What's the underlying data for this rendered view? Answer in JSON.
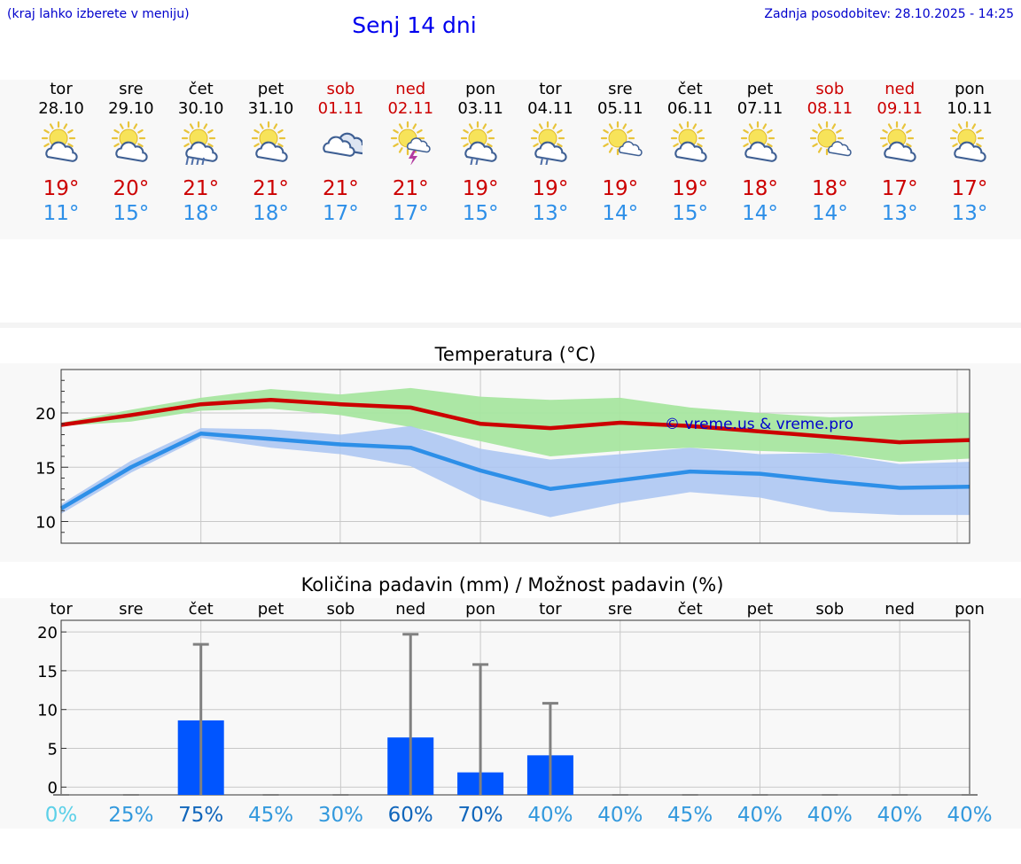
{
  "header": {
    "menu_hint": "(kraj lahko izberete v meniju)",
    "title": "Senj 14 dni",
    "last_update": "Zadnja posodobitev: 28.10.2025 - 14:25"
  },
  "days": [
    {
      "name": "tor",
      "date": "28.10",
      "weekend": false,
      "icon": "sun-cloud-icon",
      "max": "19°",
      "min": "11°"
    },
    {
      "name": "sre",
      "date": "29.10",
      "weekend": false,
      "icon": "sun-cloud-icon",
      "max": "20°",
      "min": "15°"
    },
    {
      "name": "čet",
      "date": "30.10",
      "weekend": false,
      "icon": "sun-cloud-rain-icon",
      "max": "21°",
      "min": "18°"
    },
    {
      "name": "pet",
      "date": "31.10",
      "weekend": false,
      "icon": "sun-cloud-icon",
      "max": "21°",
      "min": "18°"
    },
    {
      "name": "sob",
      "date": "01.11",
      "weekend": true,
      "icon": "cloudy-icon",
      "max": "21°",
      "min": "17°"
    },
    {
      "name": "ned",
      "date": "02.11",
      "weekend": true,
      "icon": "sun-thunder-icon",
      "max": "21°",
      "min": "17°"
    },
    {
      "name": "pon",
      "date": "03.11",
      "weekend": false,
      "icon": "sun-cloud-light-rain-icon",
      "max": "19°",
      "min": "15°"
    },
    {
      "name": "tor",
      "date": "04.11",
      "weekend": false,
      "icon": "sun-cloud-light-rain-icon",
      "max": "19°",
      "min": "13°"
    },
    {
      "name": "sre",
      "date": "05.11",
      "weekend": false,
      "icon": "sun-small-cloud-icon",
      "max": "19°",
      "min": "14°"
    },
    {
      "name": "čet",
      "date": "06.11",
      "weekend": false,
      "icon": "sun-cloud-icon",
      "max": "19°",
      "min": "15°"
    },
    {
      "name": "pet",
      "date": "07.11",
      "weekend": false,
      "icon": "sun-cloud-icon",
      "max": "18°",
      "min": "14°"
    },
    {
      "name": "sob",
      "date": "08.11",
      "weekend": true,
      "icon": "sun-small-cloud-icon",
      "max": "18°",
      "min": "14°"
    },
    {
      "name": "ned",
      "date": "09.11",
      "weekend": true,
      "icon": "sun-cloud-icon",
      "max": "17°",
      "min": "13°"
    },
    {
      "name": "pon",
      "date": "10.11",
      "weekend": false,
      "icon": "sun-cloud-icon",
      "max": "17°",
      "min": "13°"
    }
  ],
  "colors": {
    "max_temp": "#cc0000",
    "min_temp": "#2d8fe8",
    "max_band": "#a8e6a0",
    "min_band": "#a9c4f2",
    "overlap_band": "#7fbfa0",
    "rain_bar": "#0055ff",
    "error_bar": "#808080",
    "chance_colors": [
      "#5bd0e8",
      "#3399dd",
      "#1166bb",
      "#3399dd",
      "#3399dd",
      "#1166bb",
      "#1166bb",
      "#3399dd",
      "#3399dd",
      "#3399dd",
      "#3399dd",
      "#3399dd",
      "#3399dd",
      "#3399dd"
    ]
  },
  "chart_data": [
    {
      "type": "line",
      "title": "Temperatura (°C)",
      "watermark": "© vreme.us & vreme.pro",
      "x": [
        "28.10",
        "29.10",
        "30.10",
        "31.10",
        "01.11",
        "02.11",
        "03.11",
        "04.11",
        "05.11",
        "06.11",
        "07.11",
        "08.11",
        "09.11",
        "10.11"
      ],
      "ylim": [
        8,
        24
      ],
      "yticks": [
        10,
        15,
        20
      ],
      "grid": true,
      "series": [
        {
          "values": [
            18.9,
            19.8,
            20.8,
            21.2,
            20.8,
            20.5,
            19.0,
            18.6,
            19.1,
            18.8,
            18.3,
            17.8,
            17.3,
            17.5
          ],
          "band_low": [
            18.8,
            19.2,
            20.2,
            20.4,
            19.8,
            18.7,
            17.4,
            16.0,
            16.5,
            16.8,
            16.5,
            16.3,
            15.5,
            15.8
          ],
          "band_high": [
            19.1,
            20.3,
            21.4,
            22.2,
            21.7,
            22.3,
            21.5,
            21.2,
            21.4,
            20.5,
            20.0,
            19.6,
            19.8,
            20.0
          ]
        },
        {
          "values": [
            11.2,
            15.0,
            18.1,
            17.6,
            17.1,
            16.8,
            14.7,
            13.0,
            13.8,
            14.6,
            14.4,
            13.7,
            13.1,
            13.2
          ],
          "band_low": [
            10.7,
            14.5,
            17.7,
            16.8,
            16.2,
            15.1,
            12.0,
            10.4,
            11.7,
            12.7,
            12.2,
            10.9,
            10.6,
            10.6
          ],
          "band_high": [
            11.6,
            15.6,
            18.6,
            18.5,
            18.0,
            18.8,
            16.7,
            15.7,
            16.2,
            16.8,
            16.2,
            16.3,
            15.3,
            15.5
          ]
        }
      ]
    },
    {
      "type": "bar",
      "title": "Količina padavin (mm) / Možnost padavin (%)",
      "categories": [
        "tor",
        "sre",
        "čet",
        "pet",
        "sob",
        "ned",
        "pon",
        "tor",
        "sre",
        "čet",
        "pet",
        "sob",
        "ned",
        "pon"
      ],
      "values": [
        0,
        0,
        8.6,
        0,
        0,
        6.4,
        1.9,
        4.1,
        0,
        0,
        0,
        0,
        0,
        0
      ],
      "error_high": [
        0,
        0,
        18.4,
        0,
        0,
        19.7,
        15.8,
        10.8,
        0,
        0,
        0,
        0,
        0,
        0
      ],
      "chance": [
        "0%",
        "25%",
        "75%",
        "45%",
        "30%",
        "60%",
        "70%",
        "40%",
        "40%",
        "45%",
        "40%",
        "40%",
        "40%",
        "40%"
      ],
      "ylim": [
        -1,
        21.5
      ],
      "yticks": [
        0,
        5,
        10,
        15,
        20
      ],
      "grid": true
    }
  ]
}
